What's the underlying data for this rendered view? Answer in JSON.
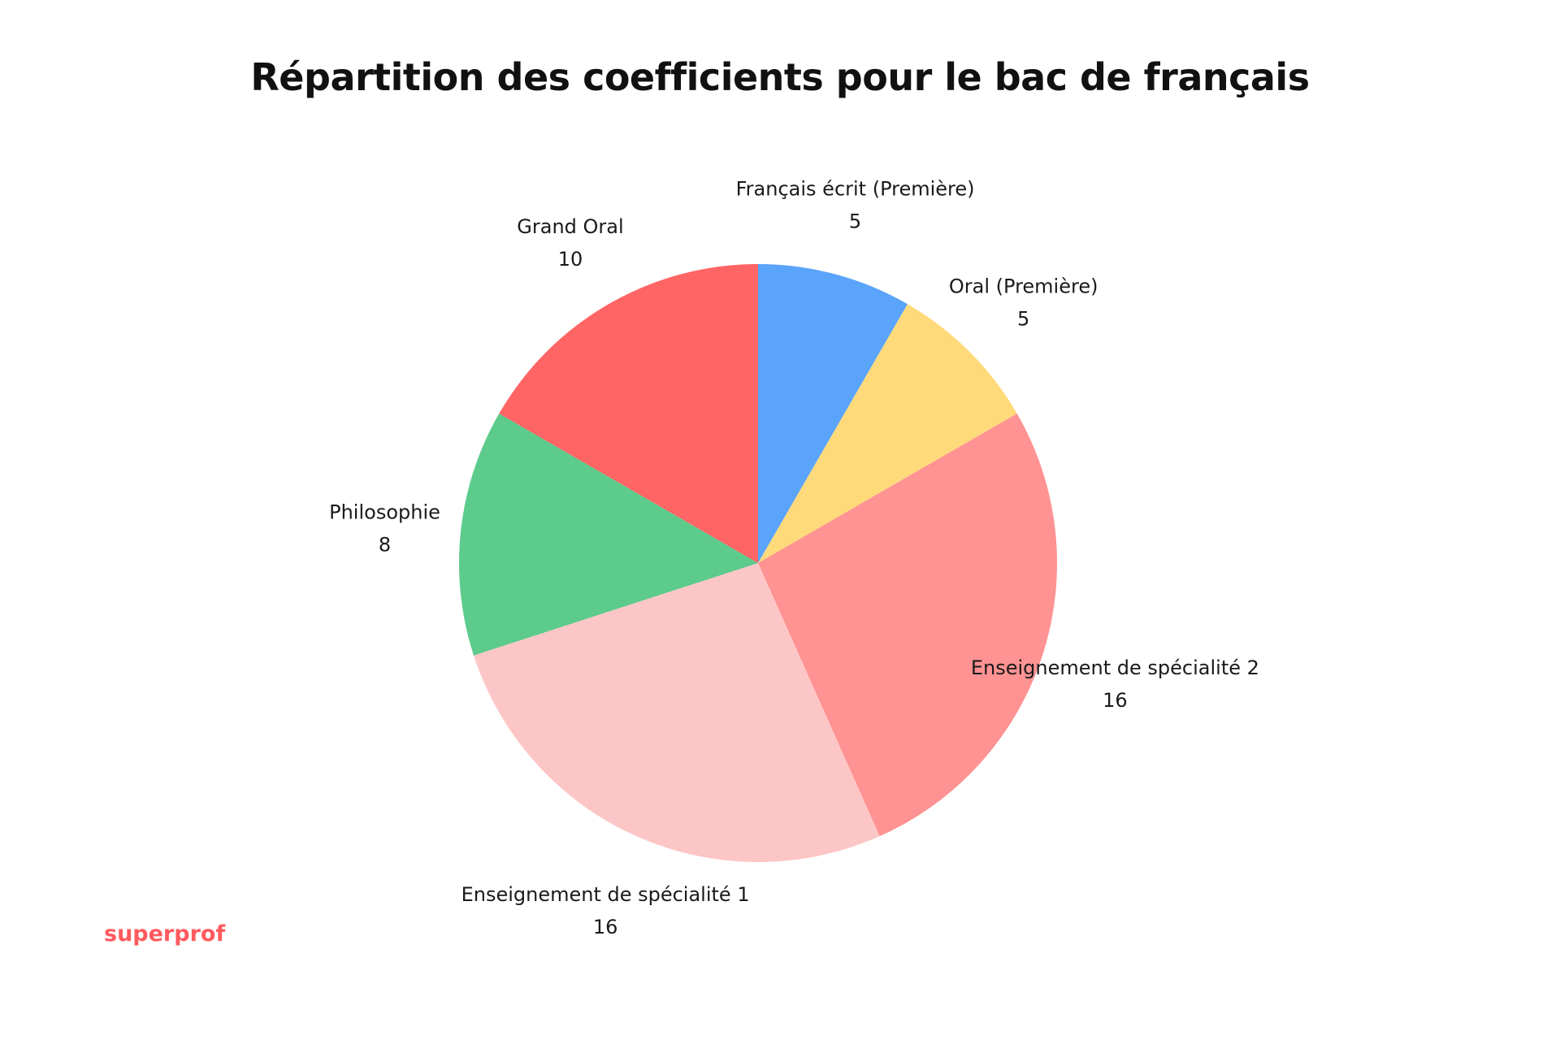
{
  "chart_data": {
    "type": "pie",
    "title": "Répartition des coefficients pour le bac de français",
    "series": [
      {
        "name": "Français écrit (Première)",
        "value": 5,
        "color": "#5BA4FB"
      },
      {
        "name": "Oral (Première)",
        "value": 5,
        "color": "#FFDA7B"
      },
      {
        "name": "Enseignement de spécialité 2",
        "value": 16,
        "color": "#FF9292"
      },
      {
        "name": "Enseignement de spécialité 1",
        "value": 16,
        "color": "#FDC6C6"
      },
      {
        "name": "Philosophie",
        "value": 8,
        "color": "#5CCB8C"
      },
      {
        "name": "Grand Oral",
        "value": 10,
        "color": "#FF6565"
      }
    ],
    "start_angle": "top, clockwise"
  },
  "brand": {
    "text": "superprof",
    "color": "#FF5A5F"
  }
}
